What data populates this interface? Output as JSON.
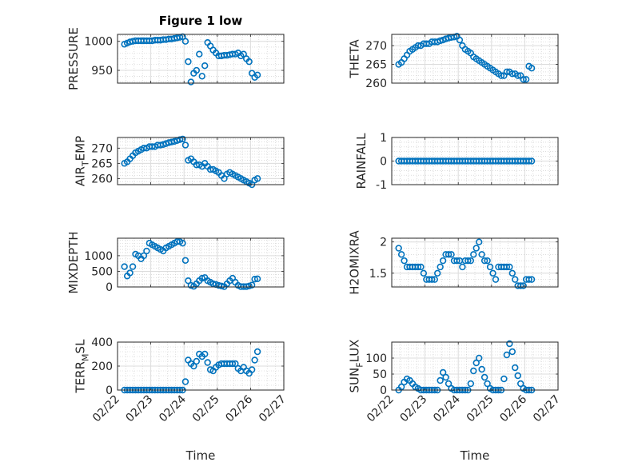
{
  "chart_data": {
    "type": "scatter",
    "title": "Figure 1 low",
    "xlabel": "Time",
    "x_unit": "hours since 02/22 00:00",
    "xlim_days": [
      "02/22",
      "02/27"
    ],
    "xtick_labels": [
      "02/22",
      "02/23",
      "02/24",
      "02/25",
      "02/26",
      "02/27"
    ],
    "x_hours": [
      5,
      7,
      9,
      11,
      13,
      15,
      17,
      19,
      21,
      23,
      25,
      27,
      29,
      31,
      33,
      35,
      37,
      39,
      41,
      43,
      45,
      47,
      49,
      51,
      53,
      55,
      57,
      59,
      61,
      63,
      65,
      67,
      69,
      71,
      73,
      75,
      77,
      79,
      81,
      83,
      85,
      87,
      89,
      91,
      93,
      95,
      97,
      99,
      101
    ],
    "marker_color": "#0072BD",
    "grid": "major and minor",
    "panels": [
      {
        "ylabel": "PRESSURE",
        "ylim": [
          928,
          1012
        ],
        "yticks": [
          "950",
          "1000"
        ],
        "values": [
          995,
          997,
          999,
          1000,
          1001,
          1001,
          1001,
          1001,
          1001,
          1001,
          1001,
          1002,
          1002,
          1002,
          1003,
          1003,
          1004,
          1004,
          1005,
          1006,
          1007,
          1008,
          1000,
          965,
          930,
          945,
          950,
          978,
          940,
          958,
          998,
          992,
          985,
          980,
          975,
          975,
          976,
          976,
          977,
          978,
          978,
          980,
          975,
          978,
          970,
          965,
          945,
          938,
          942
        ]
      },
      {
        "ylabel": "THETA",
        "ylim": [
          260,
          273
        ],
        "yticks": [
          "260",
          "265",
          "270"
        ],
        "values": [
          265,
          265.5,
          266.5,
          267.5,
          268.5,
          269,
          269.5,
          270,
          270,
          270.5,
          270.5,
          270.5,
          271,
          271,
          271,
          271.3,
          271.5,
          271.8,
          272,
          272.2,
          272.3,
          272.5,
          271.5,
          270,
          269,
          268.5,
          268,
          267,
          266.5,
          266,
          265.5,
          265,
          264.5,
          264,
          263.5,
          263,
          262.5,
          262,
          262,
          263,
          263,
          262.5,
          262.5,
          262,
          262,
          261,
          261,
          264.5,
          264
        ]
      },
      {
        "ylabel": "AIR_TEMP",
        "ylim": [
          258,
          273.5
        ],
        "yticks": [
          "260",
          "265",
          "270"
        ],
        "values": [
          265,
          265.5,
          266.5,
          267.5,
          268.5,
          269,
          269.5,
          270,
          270,
          270.5,
          270.5,
          270.5,
          271,
          271,
          271.2,
          271.5,
          271.8,
          272,
          272.2,
          272.5,
          272.8,
          273,
          271,
          266,
          266.5,
          265.5,
          264.5,
          264.5,
          264,
          265,
          264,
          263,
          263,
          262.5,
          262,
          261,
          260,
          261.5,
          262,
          261.5,
          261,
          260.5,
          260,
          259.5,
          259,
          258.5,
          258,
          259.5,
          260
        ]
      },
      {
        "ylabel": "RAINFALL",
        "ylim": [
          -1,
          1
        ],
        "yticks": [
          "-1",
          "0",
          "1"
        ],
        "values": [
          0,
          0,
          0,
          0,
          0,
          0,
          0,
          0,
          0,
          0,
          0,
          0,
          0,
          0,
          0,
          0,
          0,
          0,
          0,
          0,
          0,
          0,
          0,
          0,
          0,
          0,
          0,
          0,
          0,
          0,
          0,
          0,
          0,
          0,
          0,
          0,
          0,
          0,
          0,
          0,
          0,
          0,
          0,
          0,
          0,
          0,
          0,
          0,
          0
        ]
      },
      {
        "ylabel": "MIXDEPTH",
        "ylim": [
          0,
          1560
        ],
        "yticks": [
          "0",
          "500",
          "1000"
        ],
        "values": [
          650,
          350,
          450,
          650,
          1050,
          1000,
          900,
          1000,
          1150,
          1400,
          1350,
          1300,
          1250,
          1200,
          1150,
          1250,
          1300,
          1350,
          1400,
          1450,
          1450,
          1400,
          850,
          200,
          50,
          20,
          100,
          200,
          280,
          300,
          200,
          150,
          100,
          80,
          50,
          30,
          10,
          100,
          200,
          280,
          150,
          50,
          10,
          10,
          10,
          30,
          60,
          250,
          260
        ]
      },
      {
        "ylabel": "H2OMIXRA",
        "ylim": [
          1.28,
          2.06
        ],
        "yticks": [
          "1.5",
          "2"
        ],
        "values": [
          1.9,
          1.8,
          1.7,
          1.6,
          1.6,
          1.6,
          1.6,
          1.6,
          1.6,
          1.5,
          1.4,
          1.4,
          1.4,
          1.4,
          1.5,
          1.6,
          1.7,
          1.8,
          1.8,
          1.8,
          1.7,
          1.7,
          1.7,
          1.6,
          1.7,
          1.7,
          1.7,
          1.8,
          1.9,
          2.0,
          1.8,
          1.7,
          1.7,
          1.6,
          1.5,
          1.4,
          1.6,
          1.6,
          1.6,
          1.6,
          1.6,
          1.5,
          1.4,
          1.3,
          1.3,
          1.3,
          1.4,
          1.4,
          1.4
        ]
      },
      {
        "ylabel": "TERR_MSL",
        "ylim": [
          0,
          400
        ],
        "yticks": [
          "0",
          "200",
          "400"
        ],
        "values": [
          0,
          0,
          0,
          0,
          0,
          0,
          0,
          0,
          0,
          0,
          0,
          0,
          0,
          0,
          0,
          0,
          0,
          0,
          0,
          0,
          0,
          0,
          70,
          250,
          220,
          200,
          240,
          300,
          280,
          300,
          230,
          170,
          160,
          190,
          210,
          220,
          220,
          220,
          220,
          220,
          220,
          180,
          160,
          190,
          160,
          140,
          170,
          250,
          320
        ]
      },
      {
        "ylabel": "SUN_FLUX",
        "ylim": [
          0,
          150
        ],
        "yticks": [
          "0",
          "50",
          "100"
        ],
        "values": [
          0,
          10,
          25,
          35,
          30,
          20,
          10,
          5,
          0,
          0,
          0,
          0,
          0,
          0,
          0,
          30,
          55,
          40,
          20,
          5,
          0,
          0,
          0,
          0,
          0,
          0,
          20,
          60,
          85,
          100,
          65,
          40,
          20,
          5,
          0,
          0,
          0,
          0,
          35,
          110,
          145,
          120,
          70,
          45,
          20,
          5,
          0,
          0,
          0
        ]
      }
    ]
  }
}
